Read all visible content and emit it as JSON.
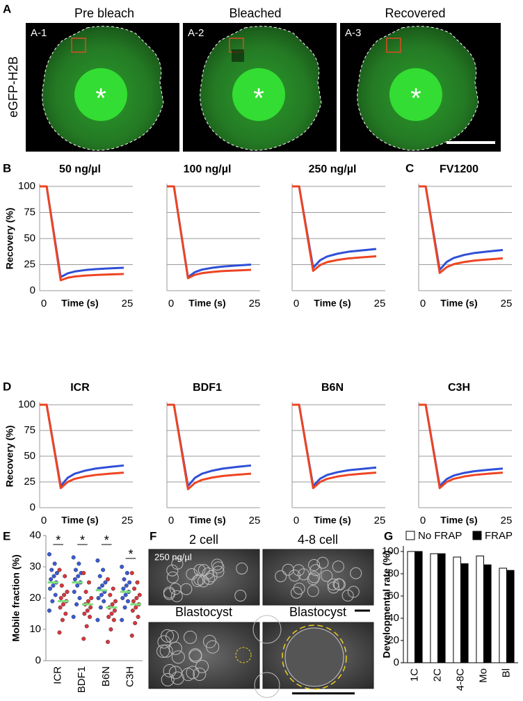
{
  "figure": {
    "panel_labels": [
      "A",
      "B",
      "C",
      "D",
      "E",
      "F",
      "G"
    ]
  },
  "images_a": {
    "titles": [
      "Pre bleach",
      "Bleached",
      "Recovered"
    ],
    "labels": [
      "A-1",
      "A-2",
      "A-3"
    ],
    "markers": [
      "*",
      "*",
      "*"
    ],
    "ylabel": "eGFP-H2B"
  },
  "images_f": {
    "titles": [
      "2 cell",
      "4-8 cell",
      "Blastocyst",
      "Blastocyst"
    ],
    "annotation": "250 ng/µl"
  },
  "chart_data": [
    {
      "type": "line",
      "title": "50 ng/µl",
      "ylabel": "Recovery (%)",
      "xlabel": "Time (s)",
      "x": [
        0,
        2,
        6,
        8,
        10,
        13,
        16,
        20,
        24
      ],
      "series": [
        {
          "color": "#2e4fd6",
          "values": [
            100,
            100,
            13,
            16.6,
            18.4,
            19.8,
            20.7,
            21.4,
            22
          ]
        },
        {
          "color": "#ee4422",
          "values": [
            100,
            100,
            10,
            12.4,
            13.6,
            14.5,
            15.1,
            15.6,
            16
          ]
        }
      ],
      "xlim": [
        0,
        25
      ],
      "xticks": [
        0,
        25
      ],
      "ylim": [
        0,
        100
      ],
      "yticks": [
        0,
        25,
        50,
        75,
        100
      ],
      "ytick_labels": true,
      "grid": true
    },
    {
      "type": "line",
      "title": "100 ng/µl",
      "xlabel": "Time (s)",
      "x": [
        0,
        2,
        6,
        8,
        10,
        13,
        16,
        20,
        24
      ],
      "series": [
        {
          "color": "#2e4fd6",
          "values": [
            100,
            100,
            13,
            17.8,
            20.2,
            22,
            23.2,
            24.2,
            25
          ]
        },
        {
          "color": "#ee4422",
          "values": [
            100,
            100,
            12,
            15.2,
            16.8,
            18,
            18.8,
            19.4,
            20
          ]
        }
      ],
      "xlim": [
        0,
        25
      ],
      "xticks": [
        0,
        25
      ],
      "ylim": [
        0,
        100
      ],
      "yticks": [
        0,
        25,
        50,
        75,
        100
      ],
      "ytick_labels": false,
      "grid": true
    },
    {
      "type": "line",
      "title": "250 ng/µl",
      "xlabel": "Time (s)",
      "x": [
        0,
        2,
        6,
        8,
        10,
        13,
        16,
        20,
        24
      ],
      "series": [
        {
          "color": "#2e4fd6",
          "values": [
            100,
            100,
            22,
            29.2,
            32.8,
            35.5,
            37.3,
            38.7,
            40
          ]
        },
        {
          "color": "#ee4422",
          "values": [
            100,
            100,
            19,
            24.6,
            27.4,
            29.5,
            30.9,
            32,
            33
          ]
        }
      ],
      "xlim": [
        0,
        25
      ],
      "xticks": [
        0,
        25
      ],
      "ylim": [
        0,
        100
      ],
      "yticks": [
        0,
        25,
        50,
        75,
        100
      ],
      "ytick_labels": false,
      "grid": true
    },
    {
      "type": "line",
      "title": "FV1200",
      "xlabel": "Time (s)",
      "x": [
        0,
        2,
        6,
        8,
        10,
        13,
        16,
        20,
        24
      ],
      "series": [
        {
          "color": "#2e4fd6",
          "values": [
            100,
            100,
            20,
            27.6,
            31.4,
            34.3,
            36.2,
            37.7,
            39
          ]
        },
        {
          "color": "#ee4422",
          "values": [
            100,
            100,
            17,
            22.6,
            25.4,
            27.5,
            28.9,
            30,
            31
          ]
        }
      ],
      "xlim": [
        0,
        25
      ],
      "xticks": [
        0,
        25
      ],
      "ylim": [
        0,
        100
      ],
      "yticks": [
        0,
        25,
        50,
        75,
        100
      ],
      "ytick_labels": false,
      "grid": true
    },
    {
      "type": "line",
      "title": "ICR",
      "ylabel": "Recovery (%)",
      "xlabel": "Time (s)",
      "x": [
        0,
        2,
        6,
        8,
        10,
        13,
        16,
        20,
        24
      ],
      "series": [
        {
          "color": "#2e4fd6",
          "values": [
            100,
            100,
            21,
            29,
            33,
            36,
            38,
            39.6,
            41
          ]
        },
        {
          "color": "#ee4422",
          "values": [
            100,
            100,
            19,
            25,
            28,
            30.3,
            31.8,
            33,
            34
          ]
        }
      ],
      "xlim": [
        0,
        25
      ],
      "xticks": [
        0,
        25
      ],
      "ylim": [
        0,
        100
      ],
      "yticks": [
        0,
        25,
        50,
        75,
        100
      ],
      "ytick_labels": true,
      "grid": true
    },
    {
      "type": "line",
      "title": "BDF1",
      "xlabel": "Time (s)",
      "x": [
        0,
        2,
        6,
        8,
        10,
        13,
        16,
        20,
        24
      ],
      "series": [
        {
          "color": "#2e4fd6",
          "values": [
            100,
            100,
            21,
            29,
            33,
            36,
            38,
            39.6,
            41
          ]
        },
        {
          "color": "#ee4422",
          "values": [
            100,
            100,
            18,
            24,
            27,
            29.3,
            30.8,
            32,
            33
          ]
        }
      ],
      "xlim": [
        0,
        25
      ],
      "xticks": [
        0,
        25
      ],
      "ylim": [
        0,
        100
      ],
      "yticks": [
        0,
        25,
        50,
        75,
        100
      ],
      "ytick_labels": false,
      "grid": true
    },
    {
      "type": "line",
      "title": "B6N",
      "xlabel": "Time (s)",
      "x": [
        0,
        2,
        6,
        8,
        10,
        13,
        16,
        20,
        24
      ],
      "series": [
        {
          "color": "#2e4fd6",
          "values": [
            100,
            100,
            21,
            28.2,
            31.8,
            34.5,
            36.3,
            37.7,
            39
          ]
        },
        {
          "color": "#ee4422",
          "values": [
            100,
            100,
            19,
            25,
            28,
            30.3,
            31.8,
            33,
            34
          ]
        }
      ],
      "xlim": [
        0,
        25
      ],
      "xticks": [
        0,
        25
      ],
      "ylim": [
        0,
        100
      ],
      "yticks": [
        0,
        25,
        50,
        75,
        100
      ],
      "ytick_labels": false,
      "grid": true
    },
    {
      "type": "line",
      "title": "C3H",
      "xlabel": "Time (s)",
      "x": [
        0,
        2,
        6,
        8,
        10,
        13,
        16,
        20,
        24
      ],
      "series": [
        {
          "color": "#2e4fd6",
          "values": [
            100,
            100,
            21,
            27.8,
            31.2,
            33.8,
            35.5,
            36.8,
            38
          ]
        },
        {
          "color": "#ee4422",
          "values": [
            100,
            100,
            19,
            25,
            28,
            30.3,
            31.8,
            33,
            34
          ]
        }
      ],
      "xlim": [
        0,
        25
      ],
      "xticks": [
        0,
        25
      ],
      "ylim": [
        0,
        100
      ],
      "yticks": [
        0,
        25,
        50,
        75,
        100
      ],
      "ytick_labels": false,
      "grid": true
    },
    {
      "type": "dots",
      "ylabel": "Mobile fraction (%)",
      "categories": [
        "ICR",
        "BDF1",
        "B6N",
        "C3H"
      ],
      "series": [
        {
          "color": "#3a5bd0",
          "values": [
            [
              34,
              31,
              29,
              28,
              27,
              26,
              25,
              24,
              23,
              21,
              19,
              16
            ],
            [
              33,
              31,
              29,
              28,
              27,
              26,
              25,
              24,
              22,
              20,
              18,
              14
            ],
            [
              32,
              29,
              27,
              25,
              24,
              23,
              22,
              21,
              20,
              19,
              17,
              13
            ],
            [
              30,
              28,
              26,
              25,
              24,
              23,
              22,
              21,
              20,
              19,
              17,
              13
            ]
          ],
          "means": [
            25,
            25,
            22.5,
            22
          ]
        },
        {
          "color": "#d9363a",
          "values": [
            [
              29,
              27,
              24,
              22,
              21,
              20,
              19,
              18,
              17,
              15,
              13,
              9
            ],
            [
              28,
              25,
              22,
              20,
              19,
              18,
              17,
              16,
              15,
              14,
              11,
              7
            ],
            [
              26,
              23,
              21,
              19,
              18,
              17,
              16,
              15,
              14,
              13,
              10,
              6
            ],
            [
              28,
              25,
              23,
              21,
              20,
              19,
              18,
              17,
              16,
              14,
              12,
              8
            ]
          ],
          "means": [
            19,
            18,
            17,
            18
          ]
        }
      ],
      "mean_color": "#7ee07e",
      "annotations": [
        "*",
        "*",
        "*",
        "*"
      ],
      "ylim": [
        0,
        40
      ],
      "yticks": [
        0,
        10,
        20,
        30,
        40
      ]
    },
    {
      "type": "bar",
      "ylabel": "Developmental rate (%)",
      "categories": [
        "1C",
        "2C",
        "4-8C",
        "Mo",
        "Bl"
      ],
      "series": [
        {
          "name": "No FRAP",
          "color": "#ffffff",
          "values": [
            100,
            98,
            95,
            96,
            85
          ]
        },
        {
          "name": "FRAP",
          "color": "#000000",
          "values": [
            100,
            98,
            89,
            88,
            83
          ]
        }
      ],
      "ylim": [
        0,
        105
      ],
      "yticks": [
        0,
        20,
        40,
        60,
        80,
        100
      ],
      "legend": "top"
    }
  ]
}
